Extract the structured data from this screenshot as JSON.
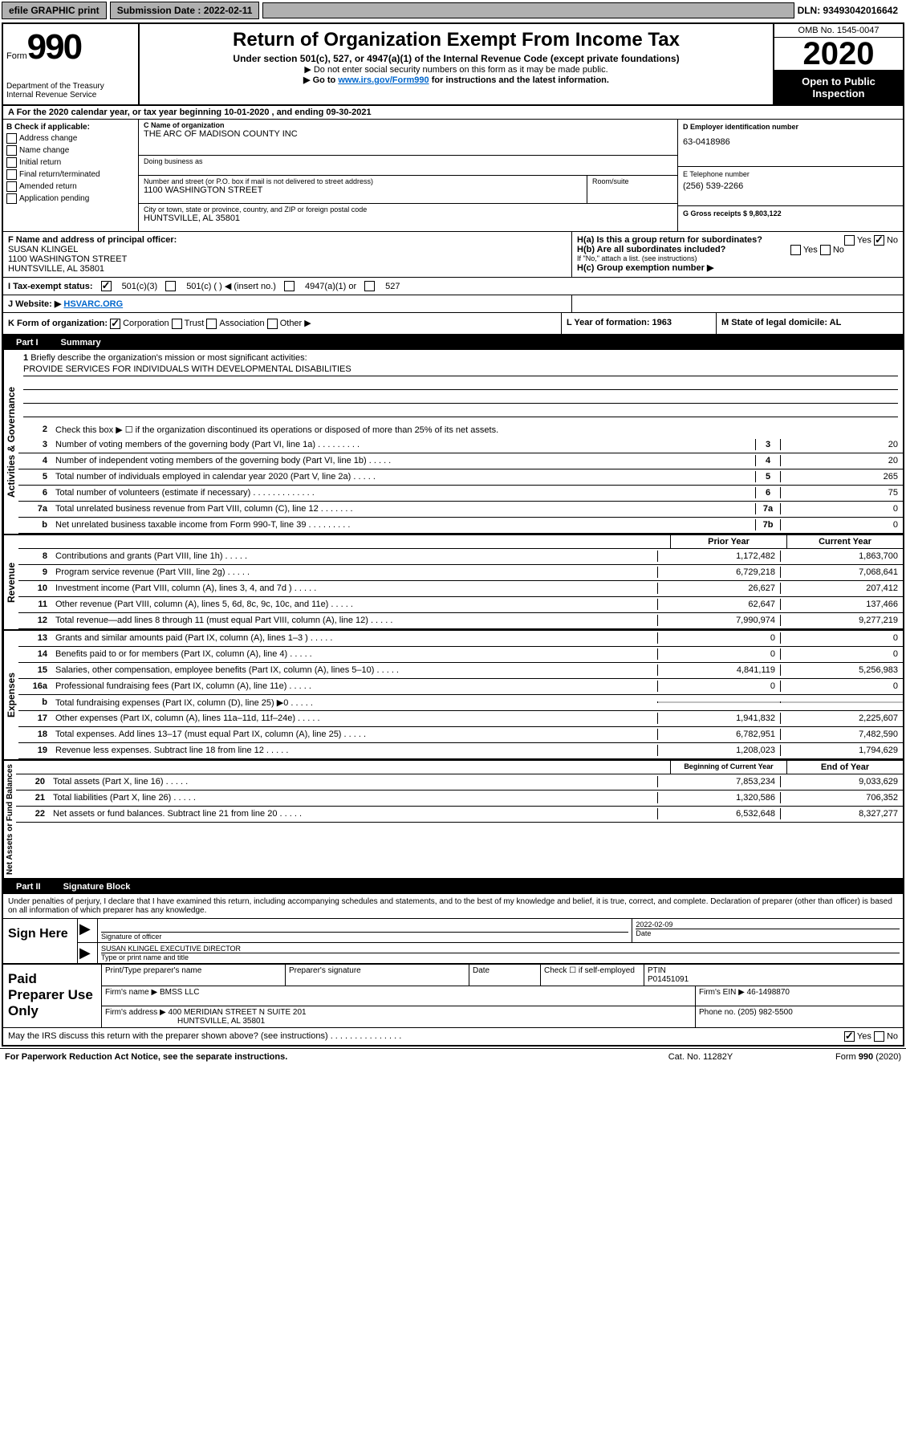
{
  "topbar": {
    "efile_label": "efile GRAPHIC print",
    "submission_label": "Submission Date : 2022-02-11",
    "dln_label": "DLN: 93493042016642"
  },
  "header": {
    "form_word": "Form",
    "form_num": "990",
    "dept1": "Department of the Treasury",
    "dept2": "Internal Revenue Service",
    "title": "Return of Organization Exempt From Income Tax",
    "sub1": "Under section 501(c), 527, or 4947(a)(1) of the Internal Revenue Code (except private foundations)",
    "sub2": "▶ Do not enter social security numbers on this form as it may be made public.",
    "sub3_pre": "▶ Go to ",
    "sub3_link": "www.irs.gov/Form990",
    "sub3_post": " for instructions and the latest information.",
    "omb": "OMB No. 1545-0047",
    "year": "2020",
    "open1": "Open to Public",
    "open2": "Inspection"
  },
  "row_a": "A   For the 2020 calendar year, or tax year beginning 10-01-2020      , and ending 09-30-2021",
  "col_b": {
    "header": "B Check if applicable:",
    "items": [
      "Address change",
      "Name change",
      "Initial return",
      "Final return/terminated",
      "Amended return",
      "Application pending"
    ]
  },
  "col_c": {
    "name_label": "C Name of organization",
    "name": "THE ARC OF MADISON COUNTY INC",
    "dba_label": "Doing business as",
    "street_label": "Number and street (or P.O. box if mail is not delivered to street address)",
    "street": "1100 WASHINGTON STREET",
    "room_label": "Room/suite",
    "city_label": "City or town, state or province, country, and ZIP or foreign postal code",
    "city": "HUNTSVILLE, AL  35801"
  },
  "col_de": {
    "d_label": "D Employer identification number",
    "d_val": "63-0418986",
    "e_label": "E Telephone number",
    "e_val": "(256) 539-2266",
    "g_label": "G Gross receipts $ 9,803,122"
  },
  "col_f": {
    "label": "F  Name and address of principal officer:",
    "name": "SUSAN KLINGEL",
    "street": "1100 WASHINGTON STREET",
    "city": "HUNTSVILLE, AL  35801"
  },
  "col_h": {
    "a_label": "H(a)  Is this a group return for subordinates?",
    "a_yes": "Yes",
    "a_no": "No",
    "b_label": "H(b)  Are all subordinates included?",
    "b_yes": "Yes",
    "b_no": "No",
    "b_note": "If \"No,\" attach a list. (see instructions)",
    "c_label": "H(c)  Group exemption number ▶"
  },
  "row_i": {
    "label": "I    Tax-exempt status:",
    "o1": "501(c)(3)",
    "o2": "501(c) (   ) ◀ (insert no.)",
    "o3": "4947(a)(1) or",
    "o4": "527"
  },
  "row_j": {
    "label": "J   Website: ▶",
    "val": "HSVARC.ORG"
  },
  "row_k": {
    "left_label": "K Form of organization:",
    "corp": "Corporation",
    "trust": "Trust",
    "assoc": "Association",
    "other": "Other ▶",
    "l_label": "L Year of formation: 1963",
    "m_label": "M State of legal domicile: AL"
  },
  "part1": {
    "num": "Part I",
    "title": "Summary"
  },
  "governance": {
    "label": "Activities & Governance",
    "l1_label": "Briefly describe the organization's mission or most significant activities:",
    "l1_val": "PROVIDE SERVICES FOR INDIVIDUALS WITH DEVELOPMENTAL DISABILITIES",
    "l2": "Check this box ▶ ☐  if the organization discontinued its operations or disposed of more than 25% of its net assets.",
    "l3": "Number of voting members of the governing body (Part VI, line 1a)",
    "l3v": "20",
    "l4": "Number of independent voting members of the governing body (Part VI, line 1b)",
    "l4v": "20",
    "l5": "Total number of individuals employed in calendar year 2020 (Part V, line 2a)",
    "l5v": "265",
    "l6": "Total number of volunteers (estimate if necessary)",
    "l6v": "75",
    "l7a": "Total unrelated business revenue from Part VIII, column (C), line 12",
    "l7av": "0",
    "l7b": "Net unrelated business taxable income from Form 990-T, line 39",
    "l7bv": "0"
  },
  "revenue": {
    "label": "Revenue",
    "h_prior": "Prior Year",
    "h_current": "Current Year",
    "rows": [
      {
        "n": "8",
        "t": "Contributions and grants (Part VIII, line 1h)",
        "p": "1,172,482",
        "c": "1,863,700"
      },
      {
        "n": "9",
        "t": "Program service revenue (Part VIII, line 2g)",
        "p": "6,729,218",
        "c": "7,068,641"
      },
      {
        "n": "10",
        "t": "Investment income (Part VIII, column (A), lines 3, 4, and 7d )",
        "p": "26,627",
        "c": "207,412"
      },
      {
        "n": "11",
        "t": "Other revenue (Part VIII, column (A), lines 5, 6d, 8c, 9c, 10c, and 11e)",
        "p": "62,647",
        "c": "137,466"
      },
      {
        "n": "12",
        "t": "Total revenue—add lines 8 through 11 (must equal Part VIII, column (A), line 12)",
        "p": "7,990,974",
        "c": "9,277,219"
      }
    ]
  },
  "expenses": {
    "label": "Expenses",
    "rows": [
      {
        "n": "13",
        "t": "Grants and similar amounts paid (Part IX, column (A), lines 1–3 )",
        "p": "0",
        "c": "0"
      },
      {
        "n": "14",
        "t": "Benefits paid to or for members (Part IX, column (A), line 4)",
        "p": "0",
        "c": "0"
      },
      {
        "n": "15",
        "t": "Salaries, other compensation, employee benefits (Part IX, column (A), lines 5–10)",
        "p": "4,841,119",
        "c": "5,256,983"
      },
      {
        "n": "16a",
        "t": "Professional fundraising fees (Part IX, column (A), line 11e)",
        "p": "0",
        "c": "0"
      },
      {
        "n": "b",
        "t": "Total fundraising expenses (Part IX, column (D), line 25) ▶0",
        "p": "shaded",
        "c": "shaded"
      },
      {
        "n": "17",
        "t": "Other expenses (Part IX, column (A), lines 11a–11d, 11f–24e)",
        "p": "1,941,832",
        "c": "2,225,607"
      },
      {
        "n": "18",
        "t": "Total expenses. Add lines 13–17 (must equal Part IX, column (A), line 25)",
        "p": "6,782,951",
        "c": "7,482,590"
      },
      {
        "n": "19",
        "t": "Revenue less expenses. Subtract line 18 from line 12",
        "p": "1,208,023",
        "c": "1,794,629"
      }
    ]
  },
  "netassets": {
    "label": "Net Assets or Fund Balances",
    "h_begin": "Beginning of Current Year",
    "h_end": "End of Year",
    "rows": [
      {
        "n": "20",
        "t": "Total assets (Part X, line 16)",
        "p": "7,853,234",
        "c": "9,033,629"
      },
      {
        "n": "21",
        "t": "Total liabilities (Part X, line 26)",
        "p": "1,320,586",
        "c": "706,352"
      },
      {
        "n": "22",
        "t": "Net assets or fund balances. Subtract line 21 from line 20",
        "p": "6,532,648",
        "c": "8,327,277"
      }
    ]
  },
  "part2": {
    "num": "Part II",
    "title": "Signature Block",
    "penalty": "Under penalties of perjury, I declare that I have examined this return, including accompanying schedules and statements, and to the best of my knowledge and belief, it is true, correct, and complete. Declaration of preparer (other than officer) is based on all information of which preparer has any knowledge."
  },
  "sign": {
    "label": "Sign Here",
    "sig_label": "Signature of officer",
    "date_label": "Date",
    "date_val": "2022-02-09",
    "name": "SUSAN KLINGEL  EXECUTIVE DIRECTOR",
    "name_label": "Type or print name and title"
  },
  "paid": {
    "label": "Paid Preparer Use Only",
    "h1": "Print/Type preparer's name",
    "h2": "Preparer's signature",
    "h3": "Date",
    "h4_pre": "Check ☐ if self-employed",
    "h5_label": "PTIN",
    "h5_val": "P01451091",
    "firm_label": "Firm's name      ▶",
    "firm_val": "BMSS LLC",
    "firm_ein_label": "Firm's EIN ▶",
    "firm_ein_val": "46-1498870",
    "addr_label": "Firm's address ▶",
    "addr_val1": "400 MERIDIAN STREET N SUITE 201",
    "addr_val2": "HUNTSVILLE, AL  35801",
    "phone_label": "Phone no. (205) 982-5500"
  },
  "discuss": {
    "text": "May the IRS discuss this return with the preparer shown above? (see instructions)",
    "yes": "Yes",
    "no": "No"
  },
  "footer": {
    "l": "For Paperwork Reduction Act Notice, see the separate instructions.",
    "c": "Cat. No. 11282Y",
    "r": "Form 990 (2020)"
  }
}
